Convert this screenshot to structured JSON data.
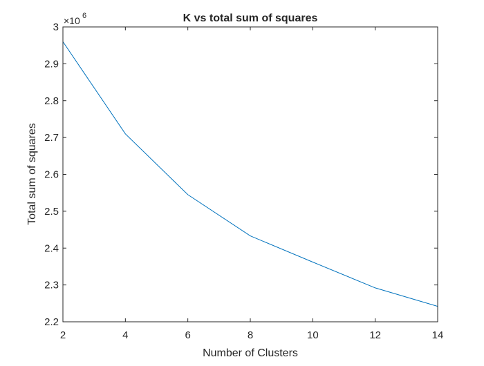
{
  "chart_data": {
    "type": "line",
    "title": "K vs total sum of squares",
    "xlabel": "Number of Clusters",
    "ylabel": "Total sum of squares",
    "y_exponent_base": "×10",
    "y_exponent_power": "6",
    "xlim": [
      2,
      14
    ],
    "ylim": [
      2.2,
      3.0
    ],
    "x_ticks": [
      2,
      4,
      6,
      8,
      10,
      12,
      14
    ],
    "y_ticks": [
      2.2,
      2.3,
      2.4,
      2.5,
      2.6,
      2.7,
      2.8,
      2.9,
      3.0
    ],
    "x_tick_labels": [
      "2",
      "4",
      "6",
      "8",
      "10",
      "12",
      "14"
    ],
    "y_tick_labels": [
      "2.2",
      "2.3",
      "2.4",
      "2.5",
      "2.6",
      "2.7",
      "2.8",
      "2.9",
      "3"
    ],
    "grid": false,
    "series": [
      {
        "color": "#0072BD",
        "x": [
          2,
          4,
          6,
          8,
          10,
          12,
          14
        ],
        "y": [
          2.96,
          2.71,
          2.545,
          2.433,
          2.362,
          2.292,
          2.242
        ]
      }
    ]
  }
}
